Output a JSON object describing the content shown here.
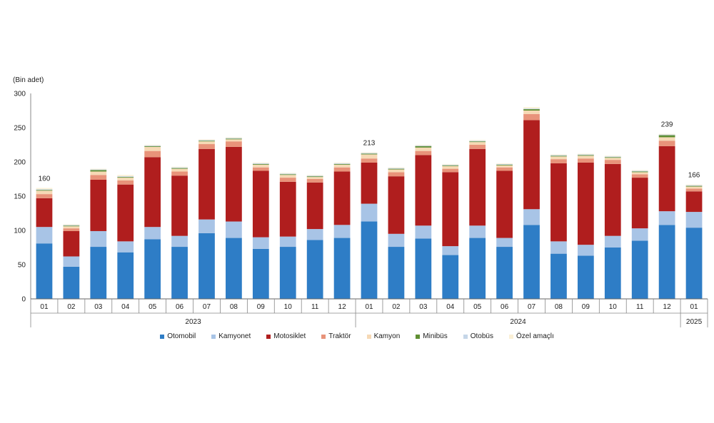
{
  "chart_data": {
    "type": "bar",
    "stacked": true,
    "ylabel": "(Bin adet)",
    "ylim": [
      0,
      300
    ],
    "yticks": [
      0,
      50,
      100,
      150,
      200,
      250,
      300
    ],
    "categories": [
      "01",
      "02",
      "03",
      "04",
      "05",
      "06",
      "07",
      "08",
      "09",
      "10",
      "11",
      "12",
      "01",
      "02",
      "03",
      "04",
      "05",
      "06",
      "07",
      "08",
      "09",
      "10",
      "11",
      "12",
      "01"
    ],
    "year_groups": [
      {
        "label": "2023",
        "start": 0,
        "end": 11
      },
      {
        "label": "2024",
        "start": 12,
        "end": 23
      },
      {
        "label": "2025",
        "start": 24,
        "end": 24
      }
    ],
    "series": [
      {
        "name": "Otomobil",
        "color": "#2e7dc6",
        "values": [
          81,
          47,
          76,
          68,
          87,
          76,
          96,
          89,
          73,
          76,
          86,
          89,
          113,
          76,
          88,
          64,
          89,
          76,
          108,
          66,
          63,
          75,
          85,
          108,
          104
        ]
      },
      {
        "name": "Kamyonet",
        "color": "#a8c4e6",
        "values": [
          24,
          15,
          23,
          16,
          18,
          16,
          20,
          24,
          17,
          15,
          16,
          19,
          26,
          19,
          19,
          13,
          18,
          13,
          23,
          18,
          16,
          17,
          18,
          20,
          23
        ]
      },
      {
        "name": "Motosiklet",
        "color": "#b01e1e",
        "values": [
          42,
          37,
          75,
          83,
          102,
          88,
          103,
          109,
          97,
          80,
          68,
          78,
          60,
          84,
          103,
          108,
          112,
          98,
          130,
          114,
          120,
          105,
          74,
          95,
          30
        ]
      },
      {
        "name": "Traktör",
        "color": "#e8937a",
        "values": [
          6,
          4,
          7,
          6,
          9,
          6,
          7,
          8,
          5,
          6,
          5,
          6,
          6,
          6,
          6,
          5,
          6,
          5,
          9,
          6,
          6,
          6,
          5,
          8,
          4
        ]
      },
      {
        "name": "Kamyon",
        "color": "#f6d9b5",
        "values": [
          5,
          3,
          5,
          4,
          6,
          4,
          4,
          3,
          4,
          4,
          3,
          4,
          6,
          4,
          5,
          4,
          4,
          3,
          5,
          4,
          4,
          3,
          3,
          5,
          3
        ]
      },
      {
        "name": "Minibüs",
        "color": "#5f8f32",
        "values": [
          1,
          1,
          2,
          1,
          1,
          1,
          1,
          1,
          1,
          1,
          1,
          1,
          1,
          1,
          2,
          1,
          1,
          1,
          2,
          1,
          1,
          1,
          1,
          3,
          1
        ]
      },
      {
        "name": "Otobüs",
        "color": "#c5d6e8",
        "values": [
          1,
          1,
          1,
          1,
          1,
          1,
          1,
          1,
          1,
          1,
          1,
          1,
          1,
          1,
          1,
          1,
          1,
          1,
          1,
          1,
          1,
          1,
          1,
          1,
          1
        ]
      },
      {
        "name": "Özel amaçlı",
        "color": "#fbf0d6",
        "values": [
          2,
          1,
          1,
          2,
          1,
          1,
          1,
          1,
          1,
          1,
          1,
          1,
          1,
          1,
          1,
          1,
          1,
          1,
          2,
          1,
          1,
          1,
          1,
          1,
          1
        ]
      }
    ],
    "annotations": [
      {
        "index": 0,
        "text": "160"
      },
      {
        "index": 12,
        "text": "213"
      },
      {
        "index": 23,
        "text": "239"
      },
      {
        "index": 24,
        "text": "166"
      }
    ],
    "legend_position": "bottom",
    "grid": false
  }
}
